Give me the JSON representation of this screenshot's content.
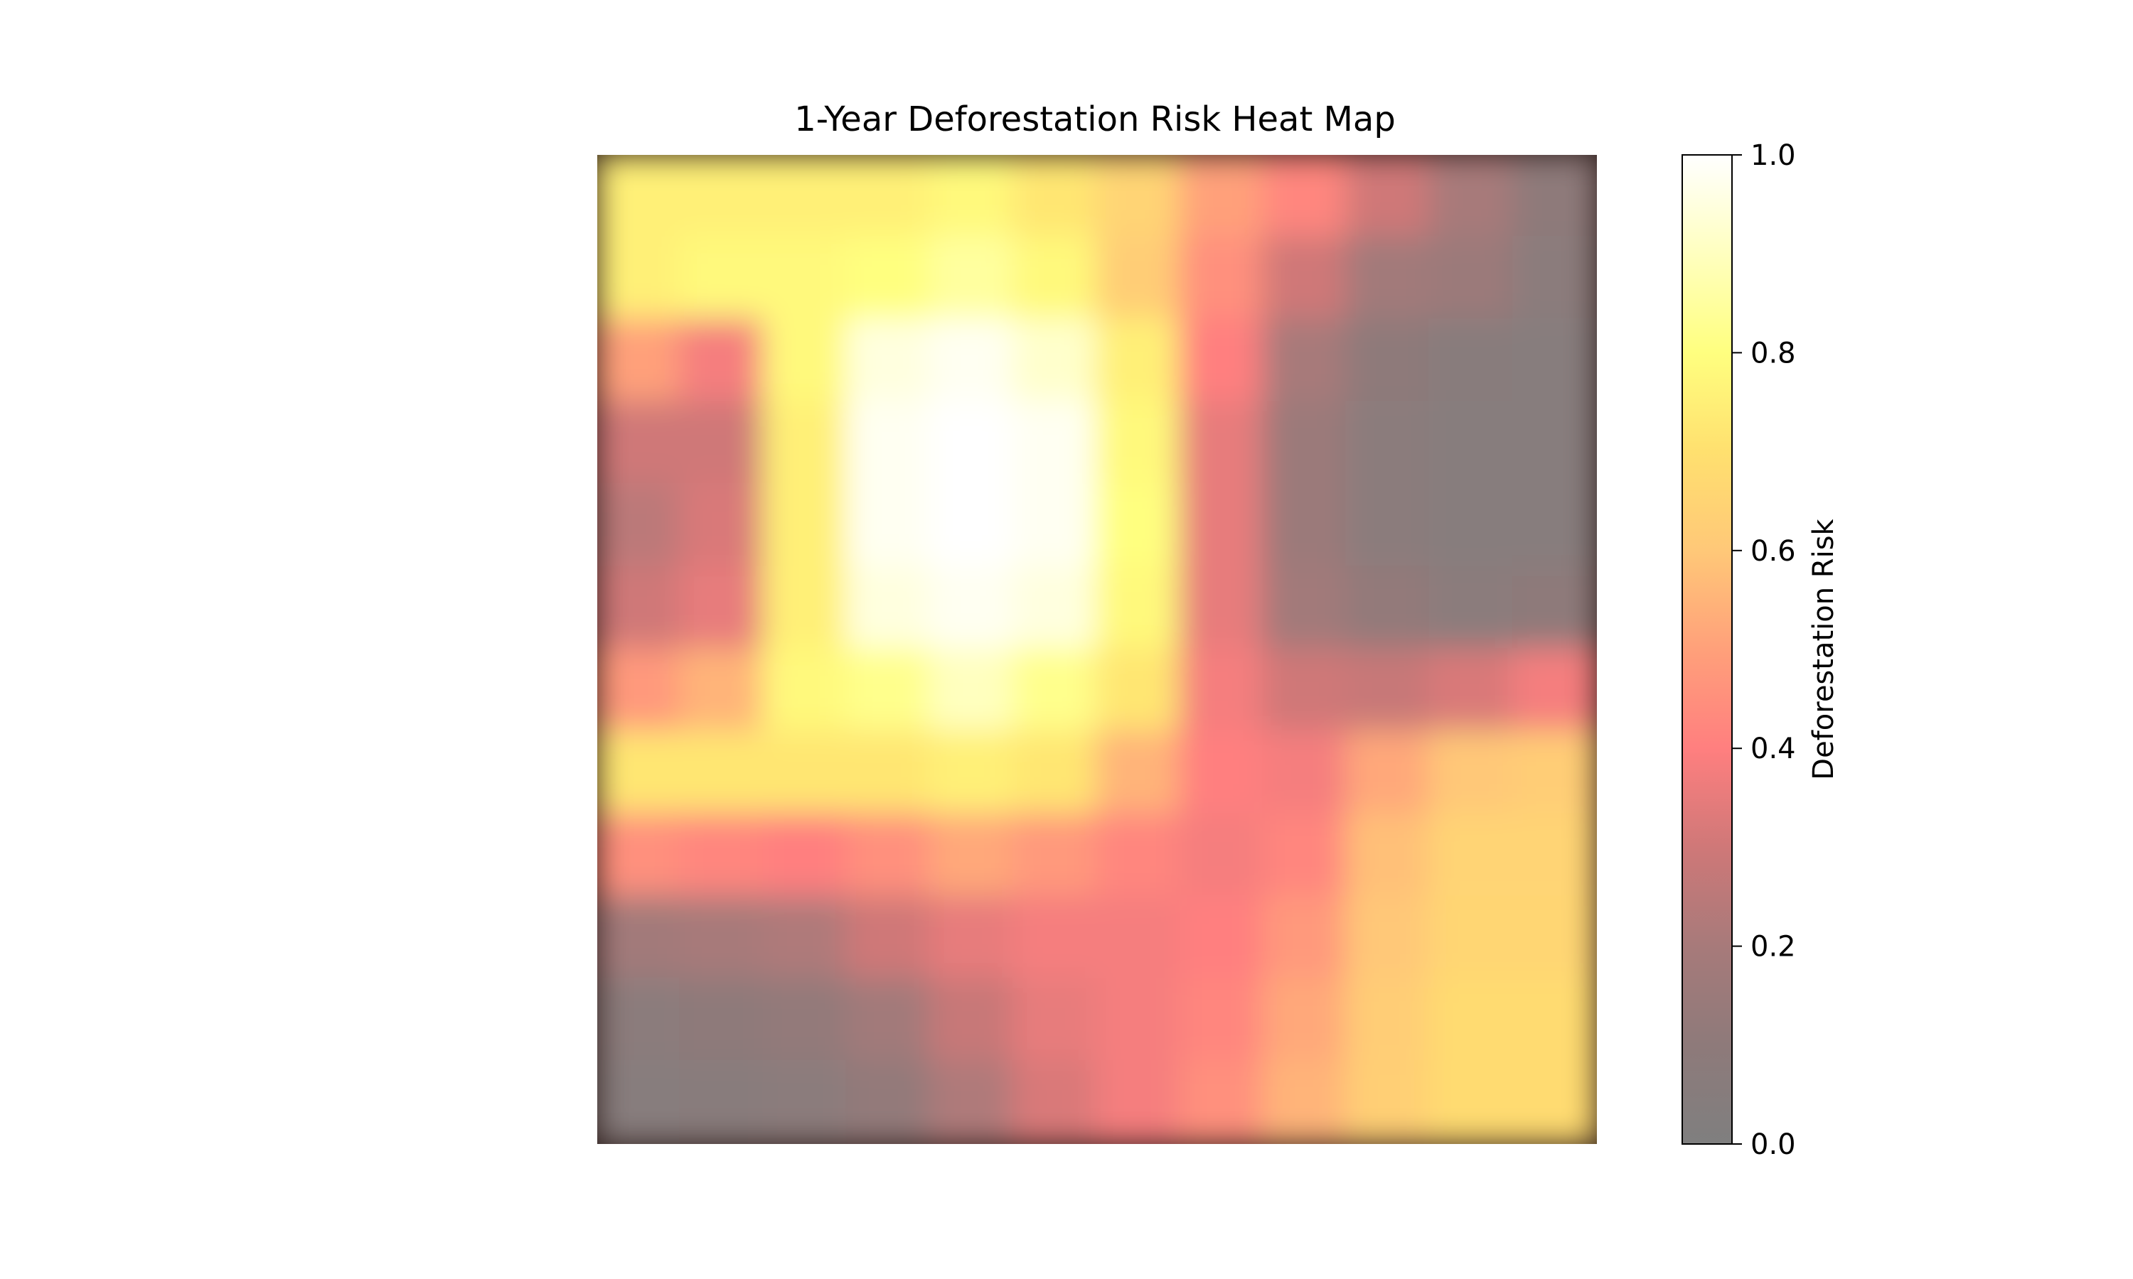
{
  "chart_data": {
    "type": "heatmap",
    "title": "1-Year Deforestation Risk Heat Map",
    "colorbar": {
      "label": "Deforestation Risk",
      "range": [
        0.0,
        1.0
      ],
      "ticks": [
        "0.0",
        "0.2",
        "0.4",
        "0.6",
        "0.8",
        "1.0"
      ],
      "tick_values": [
        0.0,
        0.2,
        0.4,
        0.6,
        0.8,
        1.0
      ],
      "colormap_stops": [
        {
          "value": 0.0,
          "color": "#7f7f7f"
        },
        {
          "value": 0.1,
          "color": "#8e7a7a"
        },
        {
          "value": 0.2,
          "color": "#a77a7a"
        },
        {
          "value": 0.3,
          "color": "#cf7878"
        },
        {
          "value": 0.4,
          "color": "#ff7f7f"
        },
        {
          "value": 0.5,
          "color": "#ffa07a"
        },
        {
          "value": 0.6,
          "color": "#ffc878"
        },
        {
          "value": 0.7,
          "color": "#ffe06f"
        },
        {
          "value": 0.8,
          "color": "#ffff7f"
        },
        {
          "value": 0.9,
          "color": "#ffffbf"
        },
        {
          "value": 1.0,
          "color": "#ffffff"
        }
      ]
    },
    "grid_size": [
      12,
      12
    ],
    "values": [
      [
        0.75,
        0.75,
        0.75,
        0.75,
        0.78,
        0.72,
        0.65,
        0.5,
        0.42,
        0.3,
        0.2,
        0.1
      ],
      [
        0.75,
        0.78,
        0.78,
        0.8,
        0.85,
        0.78,
        0.62,
        0.45,
        0.3,
        0.18,
        0.15,
        0.08
      ],
      [
        0.5,
        0.38,
        0.78,
        0.95,
        0.98,
        0.92,
        0.75,
        0.4,
        0.2,
        0.1,
        0.06,
        0.05
      ],
      [
        0.3,
        0.3,
        0.75,
        0.98,
        1.0,
        0.98,
        0.78,
        0.35,
        0.15,
        0.08,
        0.05,
        0.05
      ],
      [
        0.25,
        0.32,
        0.75,
        0.98,
        1.0,
        0.98,
        0.8,
        0.35,
        0.15,
        0.08,
        0.05,
        0.05
      ],
      [
        0.3,
        0.35,
        0.75,
        0.95,
        0.98,
        0.95,
        0.78,
        0.35,
        0.18,
        0.12,
        0.08,
        0.1
      ],
      [
        0.48,
        0.55,
        0.78,
        0.82,
        0.9,
        0.82,
        0.72,
        0.38,
        0.3,
        0.28,
        0.32,
        0.38
      ],
      [
        0.72,
        0.72,
        0.72,
        0.72,
        0.75,
        0.72,
        0.55,
        0.4,
        0.38,
        0.52,
        0.6,
        0.62
      ],
      [
        0.45,
        0.42,
        0.4,
        0.45,
        0.52,
        0.48,
        0.42,
        0.38,
        0.42,
        0.58,
        0.65,
        0.65
      ],
      [
        0.18,
        0.2,
        0.22,
        0.3,
        0.35,
        0.38,
        0.38,
        0.4,
        0.48,
        0.6,
        0.66,
        0.66
      ],
      [
        0.08,
        0.1,
        0.12,
        0.18,
        0.28,
        0.35,
        0.38,
        0.42,
        0.52,
        0.62,
        0.68,
        0.68
      ],
      [
        0.05,
        0.06,
        0.08,
        0.12,
        0.22,
        0.32,
        0.38,
        0.45,
        0.55,
        0.63,
        0.68,
        0.68
      ]
    ]
  }
}
